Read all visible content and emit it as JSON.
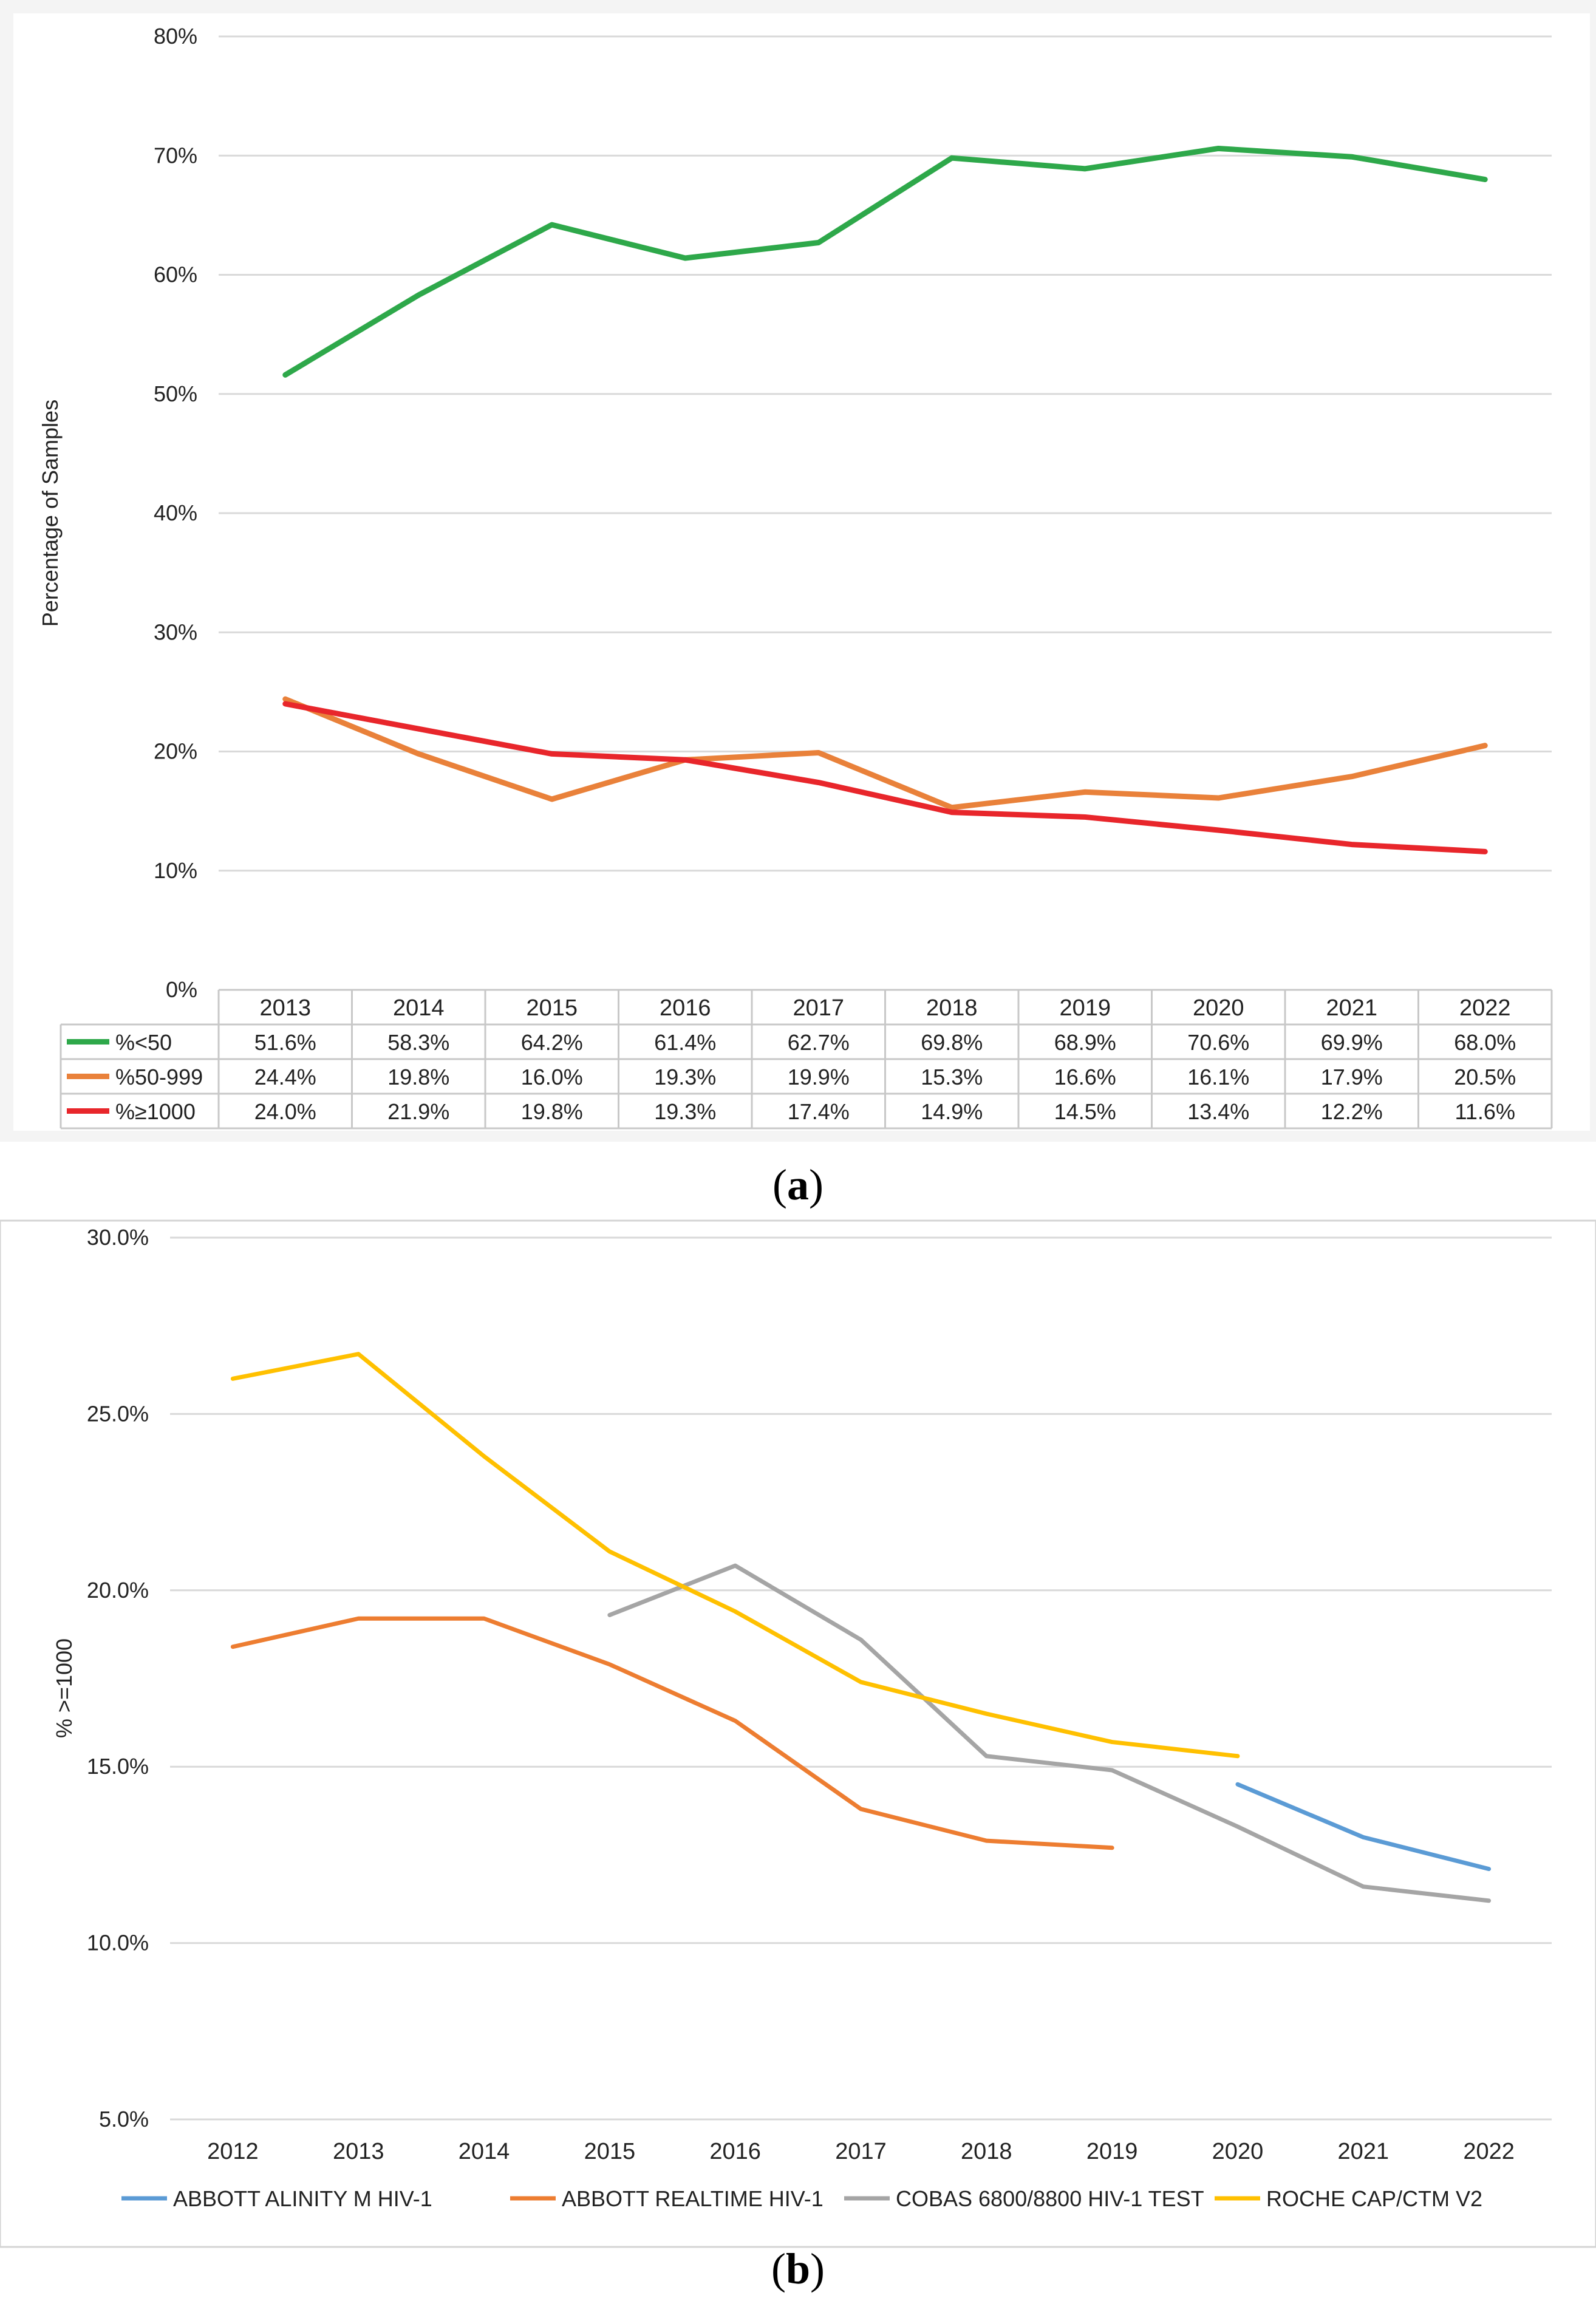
{
  "chart_data": [
    {
      "type": "line",
      "caption": "a",
      "ylabel": "Percentage of Samples",
      "ylim": [
        0,
        80
      ],
      "y_ticks": [
        "0%",
        "10%",
        "20%",
        "30%",
        "40%",
        "50%",
        "60%",
        "70%",
        "80%"
      ],
      "categories": [
        "2013",
        "2014",
        "2015",
        "2016",
        "2017",
        "2018",
        "2019",
        "2020",
        "2021",
        "2022"
      ],
      "grid": true,
      "legend": "data-table-below",
      "series": [
        {
          "name": "%<50",
          "color": "#2EA84A",
          "values": [
            51.6,
            58.3,
            64.2,
            61.4,
            62.7,
            69.8,
            68.9,
            70.6,
            69.9,
            68.0
          ],
          "labels": [
            "51.6%",
            "58.3%",
            "64.2%",
            "61.4%",
            "62.7%",
            "69.8%",
            "68.9%",
            "70.6%",
            "69.9%",
            "68.0%"
          ]
        },
        {
          "name": "%50-999",
          "color": "#E9813A",
          "values": [
            24.4,
            19.8,
            16.0,
            19.3,
            19.9,
            15.3,
            16.6,
            16.1,
            17.9,
            20.5
          ],
          "labels": [
            "24.4%",
            "19.8%",
            "16.0%",
            "19.3%",
            "19.9%",
            "15.3%",
            "16.6%",
            "16.1%",
            "17.9%",
            "20.5%"
          ]
        },
        {
          "name": "%≥1000",
          "color": "#E8262B",
          "values": [
            24.0,
            21.9,
            19.8,
            19.3,
            17.4,
            14.9,
            14.5,
            13.4,
            12.2,
            11.6
          ],
          "labels": [
            "24.0%",
            "21.9%",
            "19.8%",
            "19.3%",
            "17.4%",
            "14.9%",
            "14.5%",
            "13.4%",
            "12.2%",
            "11.6%"
          ]
        }
      ]
    },
    {
      "type": "line",
      "caption": "b",
      "ylabel": "% >=1000",
      "ylim": [
        5,
        30
      ],
      "y_ticks": [
        "5.0%",
        "10.0%",
        "15.0%",
        "20.0%",
        "25.0%",
        "30.0%"
      ],
      "categories": [
        "2012",
        "2013",
        "2014",
        "2015",
        "2016",
        "2017",
        "2018",
        "2019",
        "2020",
        "2021",
        "2022"
      ],
      "grid": true,
      "legend": "bottom",
      "series": [
        {
          "name": "ABBOTT ALINITY M HIV-1",
          "color": "#5B9BD5",
          "values": [
            null,
            null,
            null,
            null,
            null,
            null,
            null,
            null,
            14.5,
            13.0,
            12.1
          ]
        },
        {
          "name": "ABBOTT REALTIME HIV-1",
          "color": "#ED7D31",
          "values": [
            18.4,
            19.2,
            19.2,
            17.9,
            16.3,
            13.8,
            12.9,
            12.7,
            null,
            null,
            null
          ]
        },
        {
          "name": "COBAS 6800/8800 HIV-1 TEST",
          "color": "#A5A5A5",
          "values": [
            null,
            null,
            null,
            19.3,
            20.7,
            18.6,
            15.3,
            14.9,
            13.3,
            11.6,
            11.2
          ]
        },
        {
          "name": "ROCHE CAP/CTM V2",
          "color": "#FFC000",
          "values": [
            26.0,
            26.7,
            23.8,
            21.1,
            19.4,
            17.4,
            16.5,
            15.7,
            15.3,
            null,
            null
          ]
        }
      ]
    }
  ]
}
